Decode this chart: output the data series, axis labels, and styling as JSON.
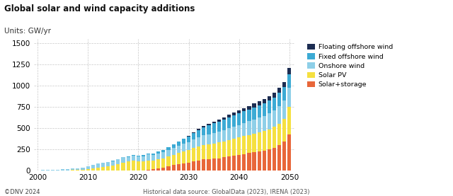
{
  "title": "Global solar and wind capacity additions",
  "units_label": "Units: GW/yr",
  "source_text": "Historical data source: GlobalData (2023), IRENA (2023)",
  "copyright_text": "©DNV 2024",
  "ylim": [
    0,
    1550
  ],
  "yticks": [
    0,
    250,
    500,
    750,
    1000,
    1250,
    1500
  ],
  "background_color": "#ffffff",
  "grid_color": "#c8c8c8",
  "years": [
    2000,
    2001,
    2002,
    2003,
    2004,
    2005,
    2006,
    2007,
    2008,
    2009,
    2010,
    2011,
    2012,
    2013,
    2014,
    2015,
    2016,
    2017,
    2018,
    2019,
    2020,
    2021,
    2022,
    2023,
    2024,
    2025,
    2026,
    2027,
    2028,
    2029,
    2030,
    2031,
    2032,
    2033,
    2034,
    2035,
    2036,
    2037,
    2038,
    2039,
    2040,
    2041,
    2042,
    2043,
    2044,
    2045,
    2046,
    2047,
    2048,
    2049,
    2050
  ],
  "solar_storage": [
    0,
    0,
    0,
    0,
    0,
    0,
    0,
    0,
    0,
    0,
    0,
    0,
    0,
    0,
    0,
    0,
    0,
    0,
    0,
    0,
    0,
    0,
    5,
    15,
    25,
    35,
    50,
    65,
    75,
    85,
    95,
    110,
    120,
    130,
    135,
    140,
    145,
    155,
    165,
    175,
    185,
    195,
    205,
    215,
    225,
    235,
    250,
    270,
    300,
    340,
    430
  ],
  "solar_pv": [
    1,
    1,
    1,
    1,
    2,
    3,
    4,
    5,
    6,
    8,
    17,
    28,
    35,
    40,
    47,
    55,
    72,
    95,
    105,
    120,
    105,
    110,
    115,
    100,
    105,
    110,
    115,
    120,
    130,
    140,
    145,
    155,
    165,
    170,
    175,
    180,
    185,
    190,
    195,
    200,
    205,
    210,
    215,
    220,
    225,
    230,
    235,
    245,
    255,
    270,
    320
  ],
  "onshore_wind": [
    3,
    4,
    5,
    6,
    8,
    10,
    13,
    17,
    22,
    28,
    35,
    40,
    45,
    50,
    52,
    55,
    58,
    60,
    55,
    52,
    58,
    60,
    68,
    70,
    72,
    75,
    80,
    85,
    88,
    92,
    98,
    105,
    110,
    115,
    120,
    125,
    128,
    132,
    138,
    142,
    148,
    155,
    162,
    168,
    175,
    182,
    188,
    195,
    205,
    215,
    225
  ],
  "fixed_offshore": [
    0,
    0,
    0,
    0,
    0,
    0,
    0,
    0,
    0,
    1,
    1,
    2,
    3,
    3,
    4,
    4,
    5,
    6,
    7,
    8,
    9,
    11,
    13,
    16,
    20,
    25,
    30,
    38,
    46,
    55,
    65,
    75,
    85,
    95,
    105,
    112,
    118,
    124,
    130,
    132,
    135,
    138,
    140,
    143,
    145,
    148,
    150,
    152,
    155,
    158,
    162
  ],
  "floating_offshore": [
    0,
    0,
    0,
    0,
    0,
    0,
    0,
    0,
    0,
    0,
    0,
    0,
    0,
    0,
    0,
    0,
    0,
    0,
    0,
    0,
    0,
    0,
    0,
    0,
    0,
    0,
    1,
    2,
    3,
    5,
    8,
    10,
    12,
    15,
    18,
    20,
    23,
    26,
    29,
    32,
    35,
    38,
    42,
    45,
    48,
    52,
    55,
    58,
    62,
    65,
    70
  ],
  "colors": {
    "solar_storage": "#e8673a",
    "solar_pv": "#f5e040",
    "onshore_wind": "#8ecfe8",
    "fixed_offshore": "#3caad4",
    "floating_offshore": "#1c2d52"
  },
  "legend_labels": [
    "Floating offshore wind",
    "Fixed offshore wind",
    "Onshore wind",
    "Solar PV",
    "Solar+storage"
  ],
  "legend_colors": [
    "#1c2d52",
    "#3caad4",
    "#8ecfe8",
    "#f5e040",
    "#e8673a"
  ]
}
